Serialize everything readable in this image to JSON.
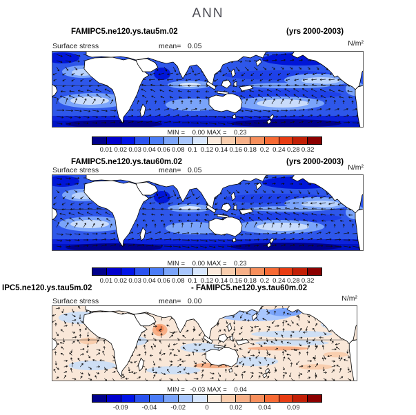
{
  "page_title": "ANN",
  "palette": [
    "#00008B",
    "#0000CD",
    "#0013E8",
    "#2A52F0",
    "#4A7CF7",
    "#7AA4FA",
    "#A9C7FD",
    "#D8E7FD",
    "#FBEADC",
    "#F9CEAE",
    "#F7B088",
    "#F78F5C",
    "#F76A34",
    "#E83C12",
    "#C21F06",
    "#8B0000"
  ],
  "accent_colors": {
    "ocean_base": "#2E57EA",
    "diff_base": "#F9E7D8",
    "land": "#ffffff",
    "arrow": "#101010"
  },
  "panels": [
    {
      "title_left": "FAMIPC5.ne120.ys.tau5m.02",
      "title_right": "(yrs 2000-2003)",
      "field_label": "Surface stress",
      "mean_label": "mean=",
      "mean_value": "0.05",
      "units": "N/m²",
      "stats_line": "MIN =    0.00 MAX =    0.23",
      "map_variant": "mean",
      "cbar_labels": [
        {
          "text": "0.01",
          "tick": 1
        },
        {
          "text": "0.02",
          "tick": 2
        },
        {
          "text": "0.03",
          "tick": 3
        },
        {
          "text": "0.04",
          "tick": 4
        },
        {
          "text": "0.06",
          "tick": 5
        },
        {
          "text": "0.08",
          "tick": 6
        },
        {
          "text": "0.1",
          "tick": 7
        },
        {
          "text": "0.12",
          "tick": 8
        },
        {
          "text": "0.14",
          "tick": 9
        },
        {
          "text": "0.16",
          "tick": 10
        },
        {
          "text": "0.18",
          "tick": 11
        },
        {
          "text": "0.2",
          "tick": 12
        },
        {
          "text": "0.24",
          "tick": 13
        },
        {
          "text": "0.28",
          "tick": 14
        },
        {
          "text": "0.32",
          "tick": 15
        }
      ]
    },
    {
      "title_left": "FAMIPC5.ne120.ys.tau60m.02",
      "title_right": "(yrs 2000-2003)",
      "field_label": "Surface stress",
      "mean_label": "mean=",
      "mean_value": "0.05",
      "units": "N/m²",
      "stats_line": "MIN =    0.00 MAX =    0.23",
      "map_variant": "mean",
      "cbar_labels": [
        {
          "text": "0.01",
          "tick": 1
        },
        {
          "text": "0.02",
          "tick": 2
        },
        {
          "text": "0.03",
          "tick": 3
        },
        {
          "text": "0.04",
          "tick": 4
        },
        {
          "text": "0.06",
          "tick": 5
        },
        {
          "text": "0.08",
          "tick": 6
        },
        {
          "text": "0.1",
          "tick": 7
        },
        {
          "text": "0.12",
          "tick": 8
        },
        {
          "text": "0.14",
          "tick": 9
        },
        {
          "text": "0.16",
          "tick": 10
        },
        {
          "text": "0.18",
          "tick": 11
        },
        {
          "text": "0.2",
          "tick": 12
        },
        {
          "text": "0.24",
          "tick": 13
        },
        {
          "text": "0.28",
          "tick": 14
        },
        {
          "text": "0.32",
          "tick": 15
        }
      ]
    },
    {
      "title_left": "IPC5.ne120.ys.tau5m.02",
      "title_right": "- FAMIPC5.ne120.ys.tau60m.02",
      "field_label": "Surface stress",
      "mean_label": "mean=",
      "mean_value": "0.00",
      "units": "N/m²",
      "stats_line": "MIN =   -0.03 MAX =    0.04",
      "map_variant": "diff",
      "cbar_labels": [
        {
          "text": "-0.09",
          "tick": 2
        },
        {
          "text": "-0.04",
          "tick": 4
        },
        {
          "text": "-0.02",
          "tick": 6
        },
        {
          "text": "0",
          "tick": 8
        },
        {
          "text": "0.02",
          "tick": 10
        },
        {
          "text": "0.04",
          "tick": 12
        },
        {
          "text": "0.09",
          "tick": 14
        }
      ]
    }
  ],
  "chart_data": [
    {
      "type": "heatmap",
      "title": "FAMIPC5.ne120.ys.tau5m.02",
      "subtitle": "(yrs 2000-2003)",
      "season": "ANN",
      "variable": "Surface stress",
      "units": "N/m²",
      "overlay": "vector arrows",
      "projection": "global cylindrical world map",
      "mean": 0.05,
      "min": 0.0,
      "max": 0.23,
      "contour_levels": [
        0.01,
        0.02,
        0.03,
        0.04,
        0.06,
        0.08,
        0.1,
        0.12,
        0.14,
        0.16,
        0.18,
        0.2,
        0.24,
        0.28,
        0.32
      ],
      "legend_position": "bottom",
      "palette_description": "16-step blue to red"
    },
    {
      "type": "heatmap",
      "title": "FAMIPC5.ne120.ys.tau60m.02",
      "subtitle": "(yrs 2000-2003)",
      "season": "ANN",
      "variable": "Surface stress",
      "units": "N/m²",
      "overlay": "vector arrows",
      "projection": "global cylindrical world map",
      "mean": 0.05,
      "min": 0.0,
      "max": 0.23,
      "contour_levels": [
        0.01,
        0.02,
        0.03,
        0.04,
        0.06,
        0.08,
        0.1,
        0.12,
        0.14,
        0.16,
        0.18,
        0.2,
        0.24,
        0.28,
        0.32
      ],
      "legend_position": "bottom",
      "palette_description": "16-step blue to red"
    },
    {
      "type": "heatmap",
      "title": "IPC5.ne120.ys.tau5m.02 - FAMIPC5.ne120.ys.tau60m.02",
      "season": "ANN",
      "variable": "Surface stress difference",
      "units": "N/m²",
      "overlay": "vector arrows",
      "projection": "global cylindrical world map",
      "mean": 0.0,
      "min": -0.03,
      "max": 0.04,
      "contour_levels": [
        -0.09,
        -0.04,
        -0.02,
        0,
        0.02,
        0.04,
        0.09
      ],
      "legend_position": "bottom",
      "palette_description": "16-step blue to red"
    }
  ]
}
